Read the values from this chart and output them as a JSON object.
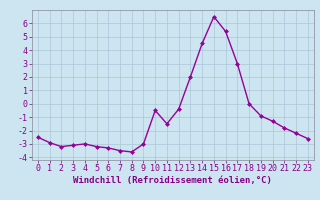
{
  "x": [
    0,
    1,
    2,
    3,
    4,
    5,
    6,
    7,
    8,
    9,
    10,
    11,
    12,
    13,
    14,
    15,
    16,
    17,
    18,
    19,
    20,
    21,
    22,
    23
  ],
  "y": [
    -2.5,
    -2.9,
    -3.2,
    -3.1,
    -3.0,
    -3.2,
    -3.3,
    -3.5,
    -3.6,
    -3.0,
    -0.5,
    -1.5,
    -0.4,
    2.0,
    4.5,
    6.5,
    5.4,
    3.0,
    0.0,
    -0.9,
    -1.3,
    -1.8,
    -2.2,
    -2.6
  ],
  "line_color": "#990099",
  "marker": "D",
  "marker_size": 2.0,
  "xlabel": "Windchill (Refroidissement éolien,°C)",
  "ylim": [
    -4.2,
    7.0
  ],
  "xlim": [
    -0.5,
    23.5
  ],
  "yticks": [
    -4,
    -3,
    -2,
    -1,
    0,
    1,
    2,
    3,
    4,
    5,
    6
  ],
  "xticks": [
    0,
    1,
    2,
    3,
    4,
    5,
    6,
    7,
    8,
    9,
    10,
    11,
    12,
    13,
    14,
    15,
    16,
    17,
    18,
    19,
    20,
    21,
    22,
    23
  ],
  "background_color": "#cce5f0",
  "grid_color": "#aac8d8",
  "label_color": "#880088",
  "xlabel_fontsize": 6.5,
  "tick_fontsize": 6.0,
  "linewidth": 1.0
}
